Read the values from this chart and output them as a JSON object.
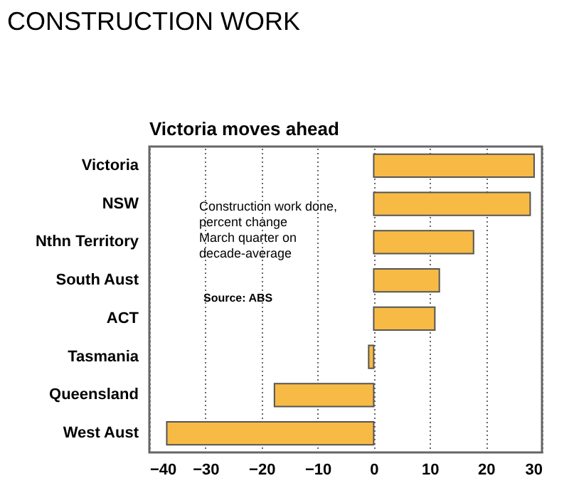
{
  "chart_data": {
    "type": "bar",
    "orientation": "horizontal",
    "title": "CONSTRUCTION WORK",
    "subtitle": "Victoria moves ahead",
    "categories": [
      "Victoria",
      "NSW",
      "Nthn Territory",
      "South Aust",
      "ACT",
      "Tasmania",
      "Queensland",
      "West Aust"
    ],
    "values": [
      28.6,
      27.9,
      17.8,
      11.7,
      10.9,
      -0.9,
      -17.7,
      -36.9
    ],
    "color": "#f7bb45",
    "xlim": [
      -40,
      30
    ],
    "xticks": [
      -40,
      -30,
      -20,
      -10,
      0,
      10,
      20,
      30
    ],
    "grid": "x",
    "annotations": [
      "Construction work done,\npercent change\nMarch quarter on\ndecade-average",
      "Source: ABS"
    ]
  }
}
